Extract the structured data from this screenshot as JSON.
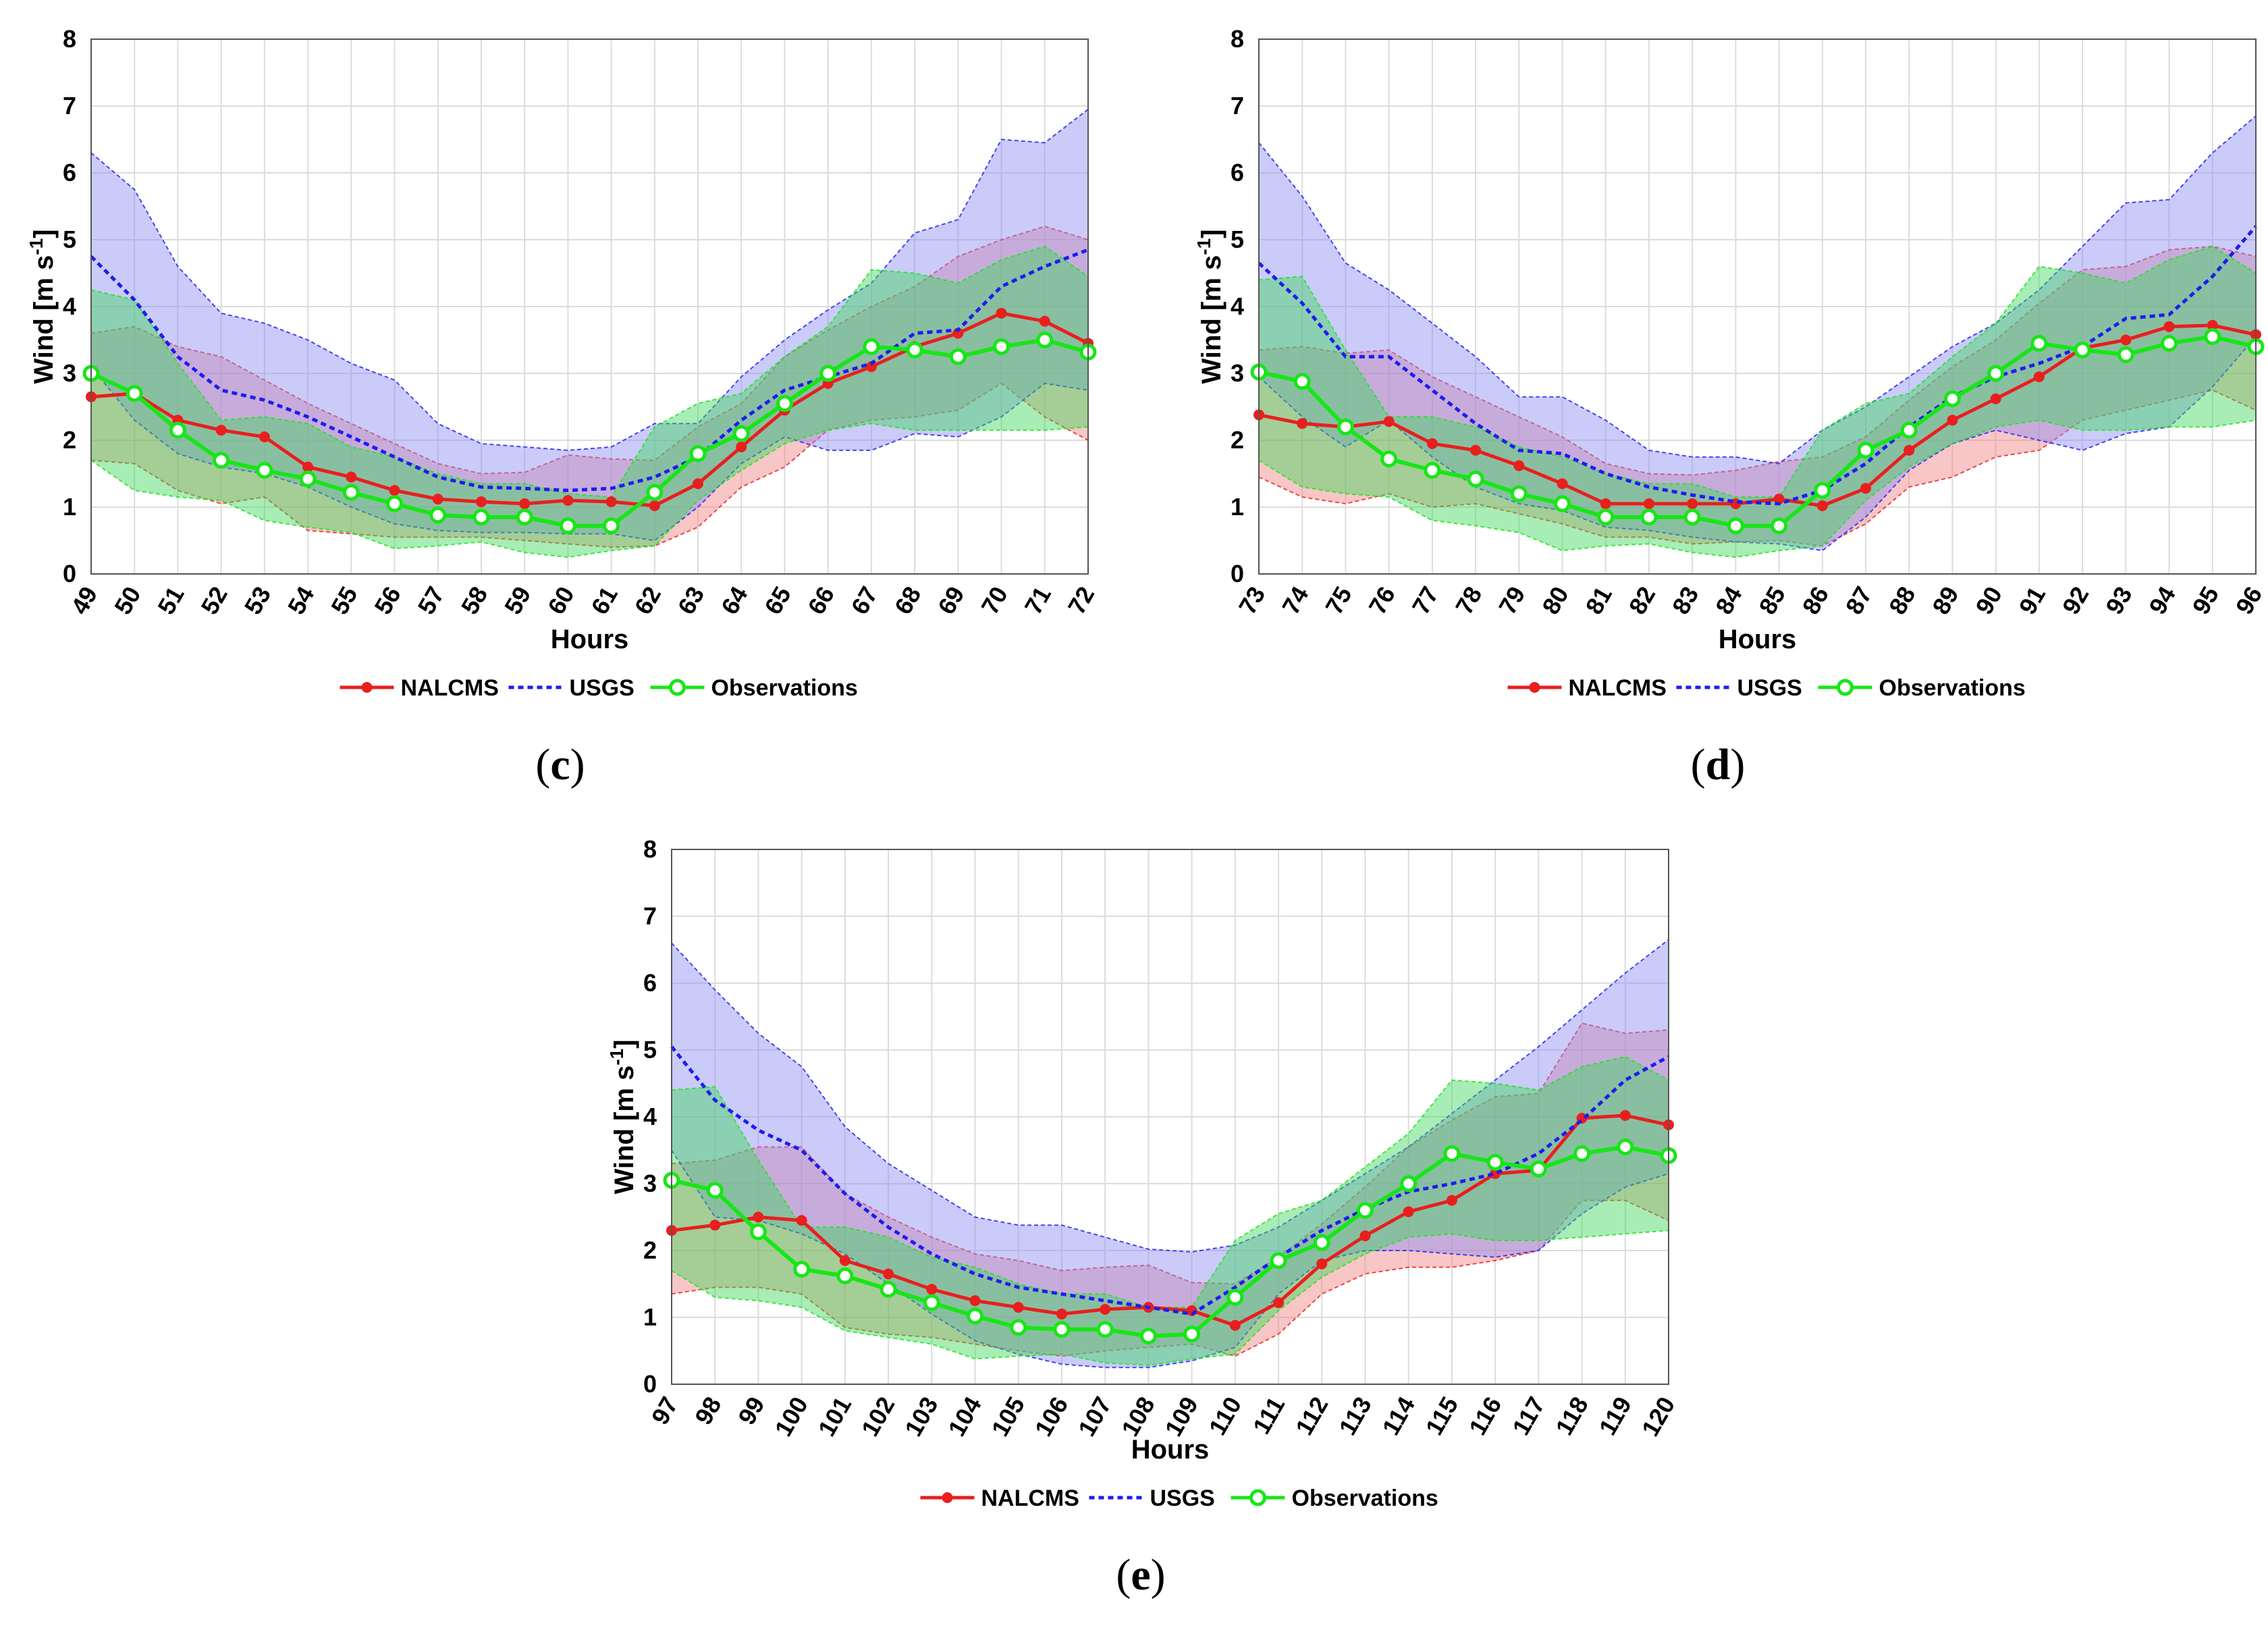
{
  "colors": {
    "nalcms": "#e81f1f",
    "usgs": "#1d1df0",
    "observations": "#17e617",
    "nalcms_fill": "#f08080",
    "usgs_fill": "#8c8cf5",
    "obs_fill": "#3ed75c"
  },
  "legend": {
    "nalcms": "NALCMS",
    "usgs": "USGS",
    "observations": "Observations"
  },
  "chart_data": [
    {
      "id": "c",
      "type": "line",
      "caption": "c",
      "xlabel": "Hours",
      "ylabel_main": "Wind [m s",
      "ylabel_sup": "-1",
      "ylabel_end": "]",
      "ylim": [
        0,
        8
      ],
      "yticks": [
        0,
        1,
        2,
        3,
        4,
        5,
        6,
        7,
        8
      ],
      "grid": true,
      "legend_position": "bottom",
      "x": [
        49,
        50,
        51,
        52,
        53,
        54,
        55,
        56,
        57,
        58,
        59,
        60,
        61,
        62,
        63,
        64,
        65,
        66,
        67,
        68,
        69,
        70,
        71,
        72
      ],
      "series": [
        {
          "name": "NALCMS",
          "values": [
            2.65,
            2.7,
            2.3,
            2.15,
            2.05,
            1.6,
            1.45,
            1.25,
            1.12,
            1.08,
            1.05,
            1.1,
            1.08,
            1.02,
            1.35,
            1.9,
            2.45,
            2.85,
            3.1,
            3.4,
            3.6,
            3.9,
            3.78,
            3.45
          ],
          "upper": [
            3.6,
            3.7,
            3.4,
            3.25,
            2.9,
            2.55,
            2.25,
            1.95,
            1.65,
            1.5,
            1.52,
            1.78,
            1.72,
            1.7,
            2.2,
            2.55,
            3.25,
            3.65,
            4.0,
            4.3,
            4.75,
            5.0,
            5.2,
            5.0
          ],
          "lower": [
            1.7,
            1.65,
            1.25,
            1.05,
            1.15,
            0.65,
            0.6,
            0.55,
            0.55,
            0.55,
            0.5,
            0.45,
            0.4,
            0.42,
            0.7,
            1.3,
            1.6,
            2.15,
            2.3,
            2.35,
            2.45,
            2.85,
            2.35,
            2.0
          ]
        },
        {
          "name": "USGS",
          "values": [
            4.75,
            4.1,
            3.25,
            2.75,
            2.6,
            2.35,
            2.05,
            1.75,
            1.45,
            1.3,
            1.28,
            1.25,
            1.28,
            1.45,
            1.75,
            2.3,
            2.75,
            2.95,
            3.15,
            3.6,
            3.65,
            4.3,
            4.6,
            4.85
          ],
          "upper": [
            6.3,
            5.75,
            4.6,
            3.9,
            3.75,
            3.5,
            3.15,
            2.9,
            2.25,
            1.95,
            1.9,
            1.85,
            1.9,
            2.25,
            2.25,
            2.95,
            3.5,
            3.95,
            4.35,
            5.1,
            5.3,
            6.5,
            6.45,
            6.95
          ],
          "lower": [
            3.1,
            2.3,
            1.8,
            1.6,
            1.5,
            1.3,
            1.0,
            0.75,
            0.65,
            0.62,
            0.62,
            0.6,
            0.6,
            0.5,
            1.0,
            1.65,
            2.05,
            1.85,
            1.85,
            2.1,
            2.05,
            2.35,
            2.85,
            2.75
          ]
        },
        {
          "name": "Observations",
          "values": [
            3.0,
            2.7,
            2.15,
            1.7,
            1.55,
            1.42,
            1.22,
            1.05,
            0.88,
            0.85,
            0.85,
            0.72,
            0.72,
            1.22,
            1.8,
            2.1,
            2.55,
            3.0,
            3.4,
            3.35,
            3.25,
            3.4,
            3.5,
            3.32
          ],
          "upper": [
            4.25,
            4.1,
            3.15,
            2.3,
            2.35,
            2.25,
            1.9,
            1.75,
            1.5,
            1.35,
            1.35,
            1.2,
            1.15,
            2.2,
            2.55,
            2.7,
            3.25,
            3.7,
            4.55,
            4.5,
            4.35,
            4.7,
            4.9,
            4.45
          ],
          "lower": [
            1.7,
            1.25,
            1.15,
            1.1,
            0.8,
            0.7,
            0.62,
            0.38,
            0.42,
            0.48,
            0.32,
            0.25,
            0.35,
            0.42,
            1.1,
            1.55,
            1.95,
            2.15,
            2.25,
            2.15,
            2.15,
            2.15,
            2.15,
            2.2
          ]
        }
      ]
    },
    {
      "id": "d",
      "type": "line",
      "caption": "d",
      "xlabel": "Hours",
      "ylabel_main": "Wind [m s",
      "ylabel_sup": "-1",
      "ylabel_end": "]",
      "ylim": [
        0,
        8
      ],
      "yticks": [
        0,
        1,
        2,
        3,
        4,
        5,
        6,
        7,
        8
      ],
      "grid": true,
      "legend_position": "bottom",
      "x": [
        73,
        74,
        75,
        76,
        77,
        78,
        79,
        80,
        81,
        82,
        83,
        84,
        85,
        86,
        87,
        88,
        89,
        90,
        91,
        92,
        93,
        94,
        95,
        96
      ],
      "series": [
        {
          "name": "NALCMS",
          "values": [
            2.38,
            2.25,
            2.2,
            2.28,
            1.95,
            1.85,
            1.62,
            1.35,
            1.05,
            1.05,
            1.05,
            1.05,
            1.12,
            1.02,
            1.28,
            1.85,
            2.3,
            2.62,
            2.95,
            3.38,
            3.5,
            3.7,
            3.72,
            3.58
          ],
          "upper": [
            3.35,
            3.4,
            3.3,
            3.35,
            2.95,
            2.65,
            2.35,
            2.05,
            1.65,
            1.5,
            1.48,
            1.55,
            1.68,
            1.75,
            2.05,
            2.6,
            3.1,
            3.5,
            4.05,
            4.55,
            4.6,
            4.85,
            4.9,
            4.75
          ],
          "lower": [
            1.45,
            1.15,
            1.05,
            1.2,
            1.0,
            1.05,
            0.9,
            0.75,
            0.55,
            0.55,
            0.45,
            0.48,
            0.5,
            0.42,
            0.75,
            1.3,
            1.45,
            1.75,
            1.85,
            2.3,
            2.45,
            2.6,
            2.75,
            2.45
          ]
        },
        {
          "name": "USGS",
          "values": [
            4.65,
            4.05,
            3.25,
            3.25,
            2.75,
            2.25,
            1.85,
            1.8,
            1.5,
            1.3,
            1.18,
            1.08,
            1.05,
            1.25,
            1.65,
            2.2,
            2.65,
            2.95,
            3.15,
            3.4,
            3.82,
            3.88,
            4.45,
            5.2
          ],
          "upper": [
            6.45,
            5.65,
            4.65,
            4.25,
            3.75,
            3.25,
            2.65,
            2.65,
            2.3,
            1.85,
            1.75,
            1.75,
            1.65,
            2.15,
            2.5,
            2.95,
            3.4,
            3.75,
            4.25,
            4.9,
            5.55,
            5.6,
            6.3,
            6.85
          ],
          "lower": [
            2.95,
            2.35,
            1.9,
            2.3,
            1.75,
            1.3,
            1.05,
            0.95,
            0.7,
            0.65,
            0.55,
            0.48,
            0.45,
            0.35,
            0.85,
            1.55,
            1.95,
            2.15,
            2.0,
            1.85,
            2.1,
            2.2,
            2.8,
            3.55
          ]
        },
        {
          "name": "Observations",
          "values": [
            3.02,
            2.88,
            2.2,
            1.72,
            1.55,
            1.42,
            1.2,
            1.05,
            0.85,
            0.85,
            0.85,
            0.72,
            0.72,
            1.25,
            1.85,
            2.15,
            2.62,
            3.0,
            3.45,
            3.35,
            3.28,
            3.45,
            3.55,
            3.4
          ],
          "upper": [
            4.4,
            4.45,
            3.35,
            2.35,
            2.35,
            2.2,
            1.9,
            1.75,
            1.5,
            1.35,
            1.35,
            1.15,
            1.15,
            2.15,
            2.55,
            2.7,
            3.25,
            3.75,
            4.6,
            4.5,
            4.35,
            4.7,
            4.9,
            4.5
          ],
          "lower": [
            1.7,
            1.3,
            1.2,
            1.15,
            0.8,
            0.72,
            0.62,
            0.35,
            0.42,
            0.45,
            0.32,
            0.25,
            0.35,
            0.42,
            1.1,
            1.6,
            1.95,
            2.2,
            2.3,
            2.15,
            2.15,
            2.2,
            2.2,
            2.3
          ]
        }
      ]
    },
    {
      "id": "e",
      "type": "line",
      "caption": "e",
      "xlabel": "Hours",
      "ylabel_main": "Wind [m s",
      "ylabel_sup": "-1",
      "ylabel_end": "]",
      "ylim": [
        0,
        8
      ],
      "yticks": [
        0,
        1,
        2,
        3,
        4,
        5,
        6,
        7,
        8
      ],
      "grid": true,
      "legend_position": "bottom",
      "x": [
        97,
        98,
        99,
        100,
        101,
        102,
        103,
        104,
        105,
        106,
        107,
        108,
        109,
        110,
        111,
        112,
        113,
        114,
        115,
        116,
        117,
        118,
        119,
        120
      ],
      "series": [
        {
          "name": "NALCMS",
          "values": [
            2.3,
            2.38,
            2.5,
            2.45,
            1.85,
            1.65,
            1.42,
            1.25,
            1.15,
            1.05,
            1.12,
            1.15,
            1.1,
            0.88,
            1.22,
            1.8,
            2.22,
            2.58,
            2.75,
            3.15,
            3.2,
            3.98,
            4.02,
            3.88
          ],
          "upper": [
            3.3,
            3.35,
            3.55,
            3.55,
            2.85,
            2.5,
            2.2,
            1.95,
            1.85,
            1.7,
            1.75,
            1.78,
            1.52,
            1.5,
            1.9,
            2.4,
            2.95,
            3.55,
            3.95,
            4.3,
            4.35,
            5.4,
            5.25,
            5.3
          ],
          "lower": [
            1.35,
            1.45,
            1.45,
            1.35,
            0.85,
            0.75,
            0.7,
            0.6,
            0.5,
            0.42,
            0.5,
            0.55,
            0.6,
            0.42,
            0.75,
            1.35,
            1.65,
            1.75,
            1.75,
            1.85,
            2.0,
            2.75,
            2.75,
            2.45
          ]
        },
        {
          "name": "USGS",
          "values": [
            5.05,
            4.25,
            3.8,
            3.5,
            2.85,
            2.35,
            1.95,
            1.65,
            1.45,
            1.35,
            1.25,
            1.15,
            1.05,
            1.45,
            1.9,
            2.3,
            2.62,
            2.88,
            3.0,
            3.15,
            3.45,
            3.95,
            4.55,
            4.9
          ],
          "upper": [
            6.6,
            5.9,
            5.25,
            4.75,
            3.85,
            3.3,
            2.9,
            2.5,
            2.38,
            2.38,
            2.2,
            2.02,
            1.98,
            2.08,
            2.35,
            2.75,
            3.15,
            3.55,
            4.05,
            4.55,
            5.05,
            5.6,
            6.15,
            6.65
          ],
          "lower": [
            3.5,
            2.5,
            2.45,
            2.25,
            1.95,
            1.5,
            1.05,
            0.65,
            0.45,
            0.3,
            0.25,
            0.25,
            0.35,
            0.55,
            1.35,
            1.85,
            2.0,
            2.0,
            1.95,
            1.9,
            2.0,
            2.55,
            2.95,
            3.15
          ]
        },
        {
          "name": "Observations",
          "values": [
            3.05,
            2.9,
            2.28,
            1.72,
            1.62,
            1.42,
            1.22,
            1.02,
            0.85,
            0.82,
            0.82,
            0.72,
            0.75,
            1.3,
            1.85,
            2.12,
            2.6,
            3.0,
            3.45,
            3.32,
            3.22,
            3.45,
            3.55,
            3.42
          ],
          "upper": [
            4.4,
            4.45,
            3.35,
            2.35,
            2.35,
            2.2,
            1.9,
            1.75,
            1.5,
            1.35,
            1.35,
            1.15,
            1.15,
            2.15,
            2.55,
            2.75,
            3.25,
            3.75,
            4.55,
            4.5,
            4.4,
            4.75,
            4.9,
            4.55
          ],
          "lower": [
            1.7,
            1.3,
            1.25,
            1.15,
            0.8,
            0.7,
            0.6,
            0.38,
            0.42,
            0.45,
            0.32,
            0.28,
            0.38,
            0.45,
            1.1,
            1.6,
            1.95,
            2.2,
            2.25,
            2.15,
            2.15,
            2.2,
            2.25,
            2.3
          ]
        }
      ]
    }
  ]
}
